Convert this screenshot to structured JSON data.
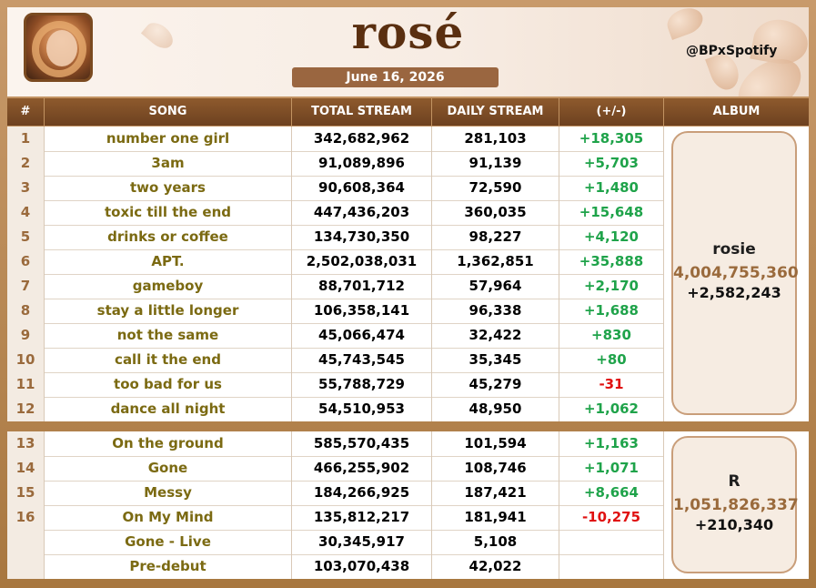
{
  "header": {
    "title": "rosé",
    "date": "June 16, 2026",
    "handle": "@BPxSpotify"
  },
  "columns": [
    "#",
    "SONG",
    "TOTAL STREAM",
    "DAILY STREAM",
    "(+/-)",
    "ALBUM"
  ],
  "section1": {
    "rows": [
      {
        "num": "1",
        "song": "number one girl",
        "total": "342,682,962",
        "daily": "281,103",
        "change": "+18,305"
      },
      {
        "num": "2",
        "song": "3am",
        "total": "91,089,896",
        "daily": "91,139",
        "change": "+5,703"
      },
      {
        "num": "3",
        "song": "two years",
        "total": "90,608,364",
        "daily": "72,590",
        "change": "+1,480"
      },
      {
        "num": "4",
        "song": "toxic till the end",
        "total": "447,436,203",
        "daily": "360,035",
        "change": "+15,648"
      },
      {
        "num": "5",
        "song": "drinks or coffee",
        "total": "134,730,350",
        "daily": "98,227",
        "change": "+4,120"
      },
      {
        "num": "6",
        "song": "APT.",
        "total": "2,502,038,031",
        "daily": "1,362,851",
        "change": "+35,888"
      },
      {
        "num": "7",
        "song": "gameboy",
        "total": "88,701,712",
        "daily": "57,964",
        "change": "+2,170"
      },
      {
        "num": "8",
        "song": "stay a little longer",
        "total": "106,358,141",
        "daily": "96,338",
        "change": "+1,688"
      },
      {
        "num": "9",
        "song": "not the same",
        "total": "45,066,474",
        "daily": "32,422",
        "change": "+830"
      },
      {
        "num": "10",
        "song": "call it the end",
        "total": "45,743,545",
        "daily": "35,345",
        "change": "+80"
      },
      {
        "num": "11",
        "song": "too bad for us",
        "total": "55,788,729",
        "daily": "45,279",
        "change": "-31"
      },
      {
        "num": "12",
        "song": "dance all night",
        "total": "54,510,953",
        "daily": "48,950",
        "change": "+1,062"
      }
    ],
    "album": {
      "name": "rosie",
      "total": "4,004,755,360",
      "daily": "+2,582,243"
    }
  },
  "section2": {
    "rows": [
      {
        "num": "13",
        "song": "On the ground",
        "total": "585,570,435",
        "daily": "101,594",
        "change": "+1,163"
      },
      {
        "num": "14",
        "song": "Gone",
        "total": "466,255,902",
        "daily": "108,746",
        "change": "+1,071"
      },
      {
        "num": "15",
        "song": "Messy",
        "total": "184,266,925",
        "daily": "187,421",
        "change": "+8,664"
      },
      {
        "num": "16",
        "song": "On My Mind",
        "total": "135,812,217",
        "daily": "181,941",
        "change": "-10,275"
      },
      {
        "num": "",
        "song": "Gone - Live",
        "total": "30,345,917",
        "daily": "5,108",
        "change": ""
      },
      {
        "num": "",
        "song": "Pre-debut",
        "total": "103,070,438",
        "daily": "42,022",
        "change": ""
      }
    ],
    "album": {
      "name": "R",
      "total": "1,051,826,337",
      "daily": "+210,340"
    }
  },
  "colors": {
    "positive": "#1fa34a",
    "negative": "#e01010",
    "header": "#6d4120"
  },
  "icons": {
    "avatar": "artist-photo"
  }
}
